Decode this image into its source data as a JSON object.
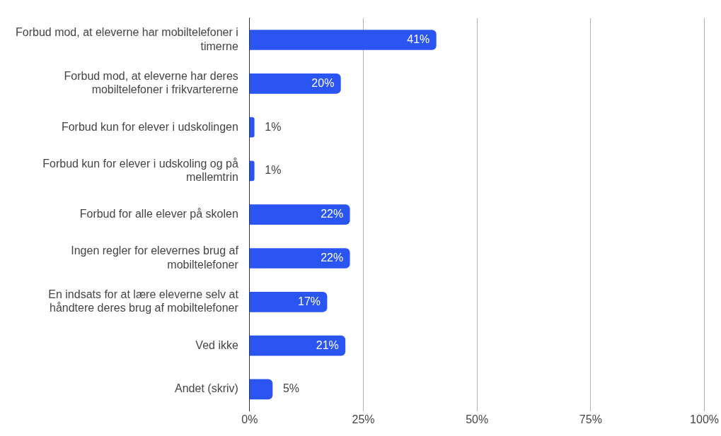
{
  "chart_data": {
    "type": "bar",
    "orientation": "horizontal",
    "categories": [
      "Forbud mod, at eleverne har mobiltelefoner i timerne",
      "Forbud mod, at eleverne har deres mobiltelefoner i frikvartererne",
      "Forbud kun for elever i udskolingen",
      "Forbud kun for elever i udskoling og på mellemtrin",
      "Forbud for alle elever på skolen",
      "Ingen regler for elevernes brug af mobiltelefoner",
      "En indsats for at lære eleverne selv at håndtere deres brug af mobiltelefoner",
      "Ved ikke",
      "Andet (skriv)"
    ],
    "values": [
      41,
      20,
      1,
      1,
      22,
      22,
      17,
      21,
      5
    ],
    "value_labels": [
      "41%",
      "20%",
      "1%",
      "1%",
      "22%",
      "22%",
      "17%",
      "21%",
      "5%"
    ],
    "color": "#2a55f2",
    "xlim": [
      0,
      100
    ],
    "xticks": [
      {
        "value": 0,
        "label": "0%"
      },
      {
        "value": 25,
        "label": "25%"
      },
      {
        "value": 50,
        "label": "50%"
      },
      {
        "value": 75,
        "label": "75%"
      },
      {
        "value": 100,
        "label": "100%"
      }
    ],
    "grid": "x",
    "legend": false
  }
}
